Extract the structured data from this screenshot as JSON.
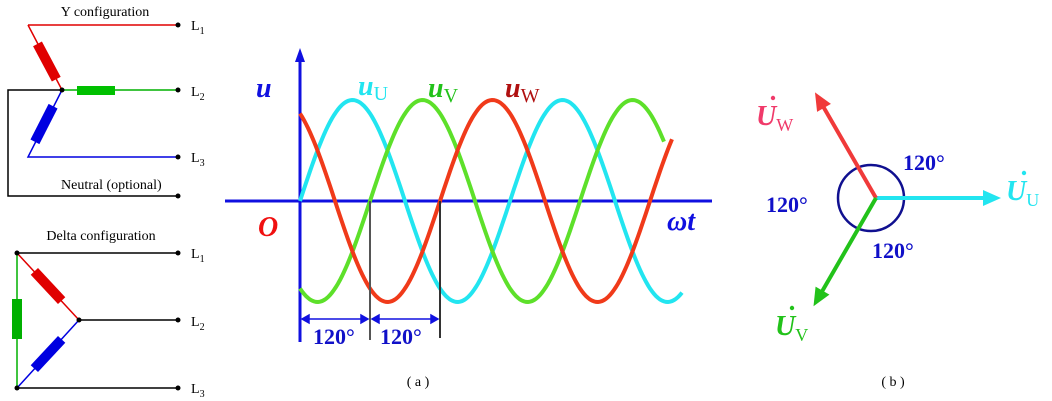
{
  "y_config": {
    "title": "Y configuration",
    "terminals": [
      "L",
      "L",
      "L"
    ],
    "terminal_subs": [
      "1",
      "2",
      "3"
    ],
    "neutral_label": "Neutral (optional)"
  },
  "delta_config": {
    "title": "Delta configuration",
    "terminals": [
      "L",
      "L",
      "L"
    ],
    "terminal_subs": [
      "1",
      "2",
      "3"
    ]
  },
  "waveform": {
    "y_axis_label": "u",
    "origin_label": "O",
    "x_axis_label": "ωt",
    "series": [
      {
        "label": "u",
        "sub": "U",
        "color": "#22e5f0",
        "phase_deg": 0
      },
      {
        "label": "u",
        "sub": "V",
        "color": "#5de02a",
        "phase_deg": -120
      },
      {
        "label": "u",
        "sub": "W",
        "color": "#f03a1a",
        "phase_deg": 120
      }
    ],
    "label_colors": {
      "U": "#22e5f0",
      "V": "#22c21a",
      "W": "#b01010"
    },
    "phase_marks": [
      "120°",
      "120°"
    ],
    "caption": "( a )"
  },
  "phasor": {
    "phasors": [
      {
        "label": "U",
        "sub": "U",
        "color": "#22e5f0",
        "angle_deg": 0
      },
      {
        "label": "U",
        "sub": "W",
        "color": "#f03a3a",
        "angle_deg": 120
      },
      {
        "label": "U",
        "sub": "V",
        "color": "#22c21a",
        "angle_deg": 240
      }
    ],
    "angle_labels": [
      "120°",
      "120°",
      "120°"
    ],
    "caption": "( b )"
  }
}
